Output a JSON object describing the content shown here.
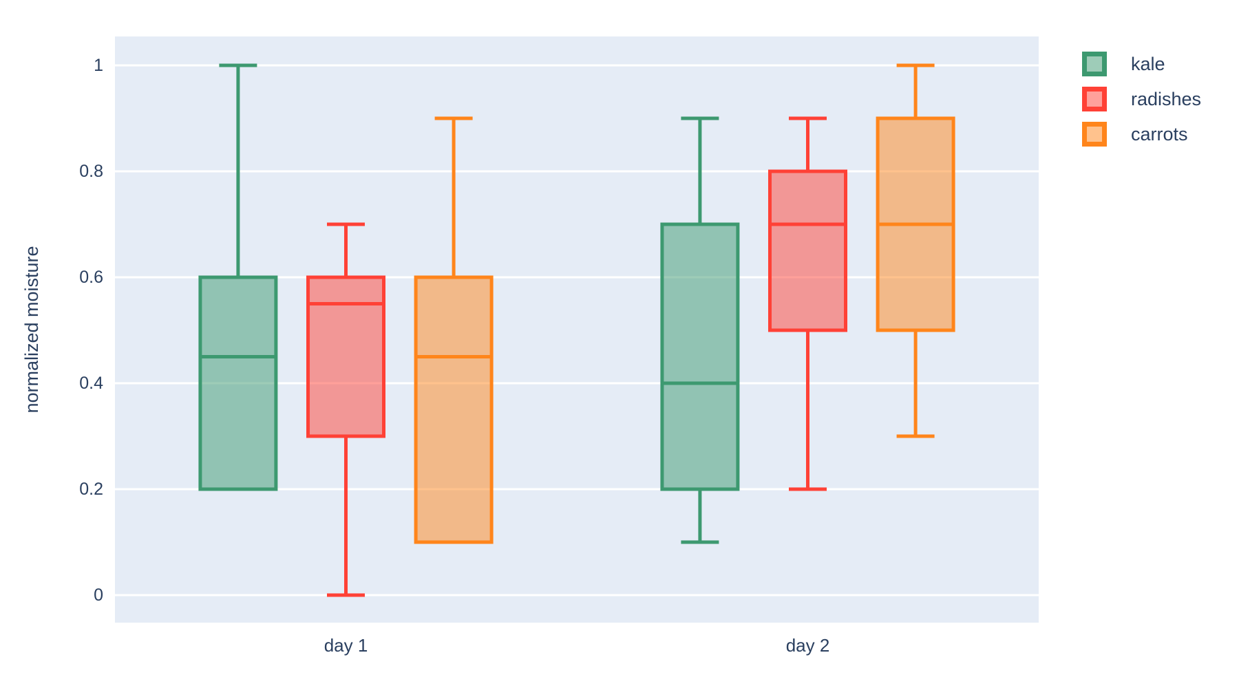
{
  "chart_data": {
    "type": "box",
    "title": "",
    "orientation": "vertical",
    "grouped": true,
    "categories": [
      "day 1",
      "day 2"
    ],
    "xaxis": {
      "title": ""
    },
    "yaxis": {
      "title": "normalized moisture",
      "ticks": [
        0,
        0.2,
        0.4,
        0.6,
        0.8,
        1
      ],
      "tick_labels": [
        "0",
        "0.2",
        "0.4",
        "0.6",
        "0.8",
        "1"
      ],
      "range": [
        -0.05,
        1.05
      ],
      "grid": true
    },
    "legend": {
      "position": "top-right"
    },
    "series": [
      {
        "name": "kale",
        "color": "#3D9970",
        "boxes": [
          {
            "category": "day 1",
            "lower_whisker": 0.2,
            "q1": 0.2,
            "median": 0.45,
            "q3": 0.6,
            "upper_whisker": 1.0
          },
          {
            "category": "day 2",
            "lower_whisker": 0.1,
            "q1": 0.2,
            "median": 0.4,
            "q3": 0.7,
            "upper_whisker": 0.9
          }
        ]
      },
      {
        "name": "radishes",
        "color": "#FF4136",
        "boxes": [
          {
            "category": "day 1",
            "lower_whisker": 0.0,
            "q1": 0.3,
            "median": 0.55,
            "q3": 0.6,
            "upper_whisker": 0.7
          },
          {
            "category": "day 2",
            "lower_whisker": 0.2,
            "q1": 0.5,
            "median": 0.7,
            "q3": 0.8,
            "upper_whisker": 0.9
          }
        ]
      },
      {
        "name": "carrots",
        "color": "#FF851B",
        "boxes": [
          {
            "category": "day 1",
            "lower_whisker": 0.1,
            "q1": 0.1,
            "median": 0.45,
            "q3": 0.6,
            "upper_whisker": 0.9
          },
          {
            "category": "day 2",
            "lower_whisker": 0.3,
            "q1": 0.5,
            "median": 0.7,
            "q3": 0.9,
            "upper_whisker": 1.0
          }
        ]
      }
    ],
    "colors": {
      "plot_background": "#E5ECF6",
      "grid": "#FFFFFF",
      "text": "#2A3F5F",
      "paper": "#FFFFFF"
    }
  }
}
